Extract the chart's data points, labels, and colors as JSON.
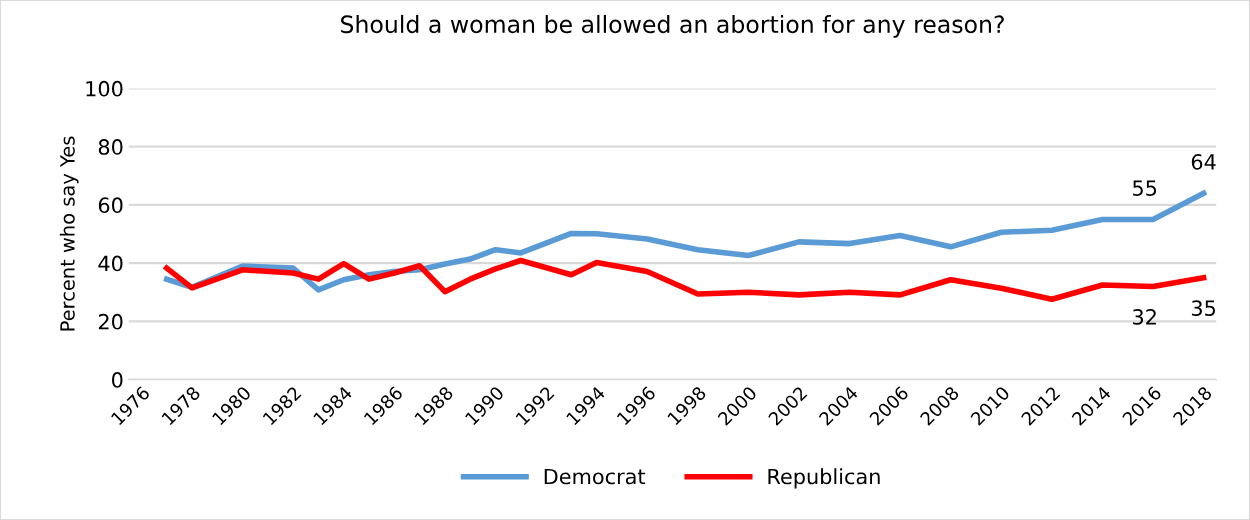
{
  "chart_data": {
    "type": "line",
    "title": "Should a woman be allowed an abortion for any reason?",
    "ylabel": "Percent who say Yes",
    "x": [
      1977,
      1978,
      1980,
      1982,
      1983,
      1984,
      1985,
      1986,
      1987,
      1988,
      1989,
      1990,
      1991,
      1993,
      1994,
      1996,
      1998,
      2000,
      2002,
      2004,
      2006,
      2008,
      2010,
      2012,
      2014,
      2016,
      2018
    ],
    "series": [
      {
        "name": "Democrat",
        "color": "#5b9bd5",
        "values": [
          34.5,
          31.7,
          39,
          38.3,
          30.8,
          34.3,
          36,
          37.1,
          37.7,
          39.7,
          41.4,
          44.6,
          43.5,
          50.2,
          50.1,
          48.3,
          44.6,
          42.6,
          47.3,
          46.7,
          49.5,
          45.6,
          50.6,
          51.3,
          55,
          55,
          64
        ],
        "value_labels": [
          null,
          null,
          null,
          null,
          null,
          null,
          null,
          null,
          null,
          null,
          null,
          null,
          null,
          null,
          null,
          null,
          null,
          null,
          null,
          null,
          null,
          null,
          null,
          null,
          null,
          "55",
          "64"
        ]
      },
      {
        "name": "Republican",
        "color": "#ff0000",
        "values": [
          38.3,
          31.5,
          37.7,
          36.6,
          34.5,
          39.8,
          34.5,
          36.6,
          39.1,
          30.2,
          34.5,
          38,
          40.9,
          36,
          40.2,
          37.1,
          29.4,
          30,
          29.1,
          30,
          29.1,
          34.3,
          31.4,
          27.6,
          32.5,
          32,
          35
        ],
        "value_labels": [
          null,
          null,
          null,
          null,
          null,
          null,
          null,
          null,
          null,
          null,
          null,
          null,
          null,
          null,
          null,
          null,
          null,
          null,
          null,
          null,
          null,
          null,
          null,
          null,
          null,
          "32",
          "35"
        ]
      }
    ],
    "xlim": [
      1975.5,
      2018.5
    ],
    "xticks": [
      1976,
      1978,
      1980,
      1982,
      1984,
      1986,
      1988,
      1990,
      1992,
      1994,
      1996,
      1998,
      2000,
      2002,
      2004,
      2006,
      2008,
      2010,
      2012,
      2014,
      2016,
      2018
    ],
    "ylim": [
      0,
      100
    ],
    "yticks": [
      0,
      20,
      40,
      60,
      80,
      100
    ],
    "grid": "y",
    "legend": "bottom",
    "marker": "none",
    "line_style": "solid"
  }
}
